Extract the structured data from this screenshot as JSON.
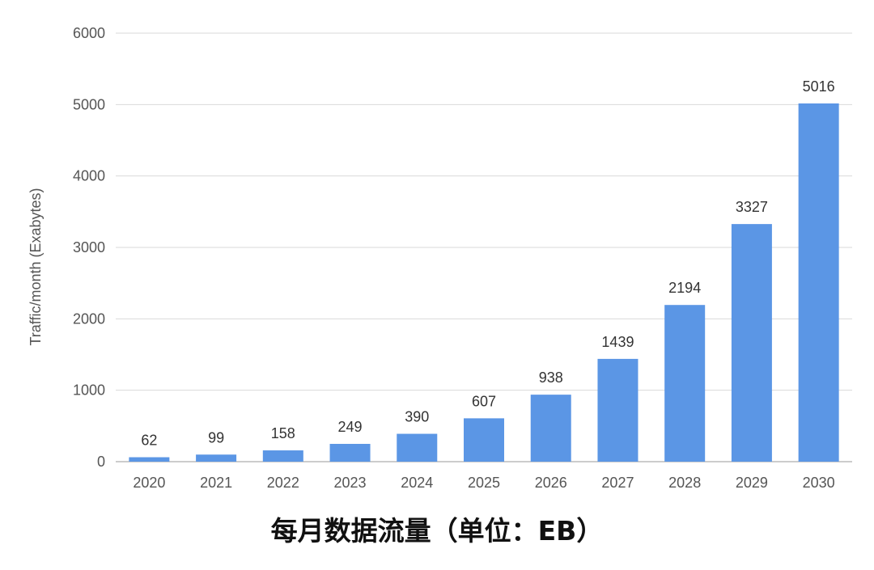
{
  "chart_data": {
    "type": "bar",
    "title": "每月数据流量（单位：EB）",
    "ylabel": "Traffic/month (Exabytes)",
    "xlabel": "",
    "categories": [
      "2020",
      "2021",
      "2022",
      "2023",
      "2024",
      "2025",
      "2026",
      "2027",
      "2028",
      "2029",
      "2030"
    ],
    "values": [
      62,
      99,
      158,
      249,
      390,
      607,
      938,
      1439,
      2194,
      3327,
      5016
    ],
    "data_labels": [
      "62",
      "99",
      "158",
      "249",
      "390",
      "607",
      "938",
      "1439",
      "2194",
      "3327",
      "5016"
    ],
    "ylim": [
      0,
      6000
    ],
    "yticks": [
      0,
      1000,
      2000,
      3000,
      4000,
      5000,
      6000
    ],
    "ytick_labels": [
      "0",
      "1000",
      "2000",
      "3000",
      "4000",
      "5000",
      "6000"
    ],
    "grid": true,
    "legend": "none",
    "bar_color": "#5b96e5"
  }
}
